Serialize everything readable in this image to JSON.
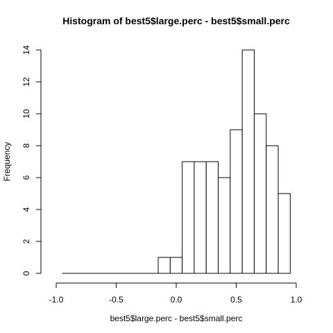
{
  "chart_data": {
    "type": "bar",
    "title": "Histogram of best5$large.perc - best5$small.perc",
    "xlabel": "best5$large.perc - best5$small.perc",
    "ylabel": "Frequency",
    "xlim": [
      -1.0,
      1.0
    ],
    "ylim": [
      0,
      14
    ],
    "x_ticks": [
      "-1.0",
      "-0.5",
      "0.0",
      "0.5",
      "1.0"
    ],
    "y_ticks": [
      "0",
      "2",
      "4",
      "6",
      "8",
      "10",
      "12",
      "14"
    ],
    "bins": [
      {
        "from": -0.95,
        "to": -0.9,
        "count": 0
      },
      {
        "from": -0.9,
        "to": -0.85,
        "count": 0
      },
      {
        "from": -0.85,
        "to": -0.8,
        "count": 0
      },
      {
        "from": -0.8,
        "to": -0.75,
        "count": 0
      },
      {
        "from": -0.75,
        "to": -0.7,
        "count": 0
      },
      {
        "from": -0.7,
        "to": -0.65,
        "count": 0
      },
      {
        "from": -0.65,
        "to": -0.6,
        "count": 0
      },
      {
        "from": -0.6,
        "to": -0.55,
        "count": 0
      },
      {
        "from": -0.55,
        "to": -0.5,
        "count": 0
      },
      {
        "from": -0.5,
        "to": -0.45,
        "count": 0
      },
      {
        "from": -0.45,
        "to": -0.4,
        "count": 0
      },
      {
        "from": -0.4,
        "to": -0.35,
        "count": 0
      },
      {
        "from": -0.35,
        "to": -0.3,
        "count": 0
      },
      {
        "from": -0.3,
        "to": -0.25,
        "count": 0
      },
      {
        "from": -0.25,
        "to": -0.2,
        "count": 0
      },
      {
        "from": -0.2,
        "to": -0.15,
        "count": 0
      },
      {
        "from": -0.15,
        "to": -0.05,
        "count": 1
      },
      {
        "from": -0.05,
        "to": 0.05,
        "count": 1
      },
      {
        "from": 0.05,
        "to": 0.15,
        "count": 7
      },
      {
        "from": 0.15,
        "to": 0.25,
        "count": 7
      },
      {
        "from": 0.25,
        "to": 0.35,
        "count": 7
      },
      {
        "from": 0.35,
        "to": 0.45,
        "count": 6
      },
      {
        "from": 0.45,
        "to": 0.55,
        "count": 9
      },
      {
        "from": 0.55,
        "to": 0.65,
        "count": 14
      },
      {
        "from": 0.65,
        "to": 0.75,
        "count": 10
      },
      {
        "from": 0.75,
        "to": 0.85,
        "count": 8
      },
      {
        "from": 0.85,
        "to": 0.95,
        "count": 5
      }
    ]
  }
}
